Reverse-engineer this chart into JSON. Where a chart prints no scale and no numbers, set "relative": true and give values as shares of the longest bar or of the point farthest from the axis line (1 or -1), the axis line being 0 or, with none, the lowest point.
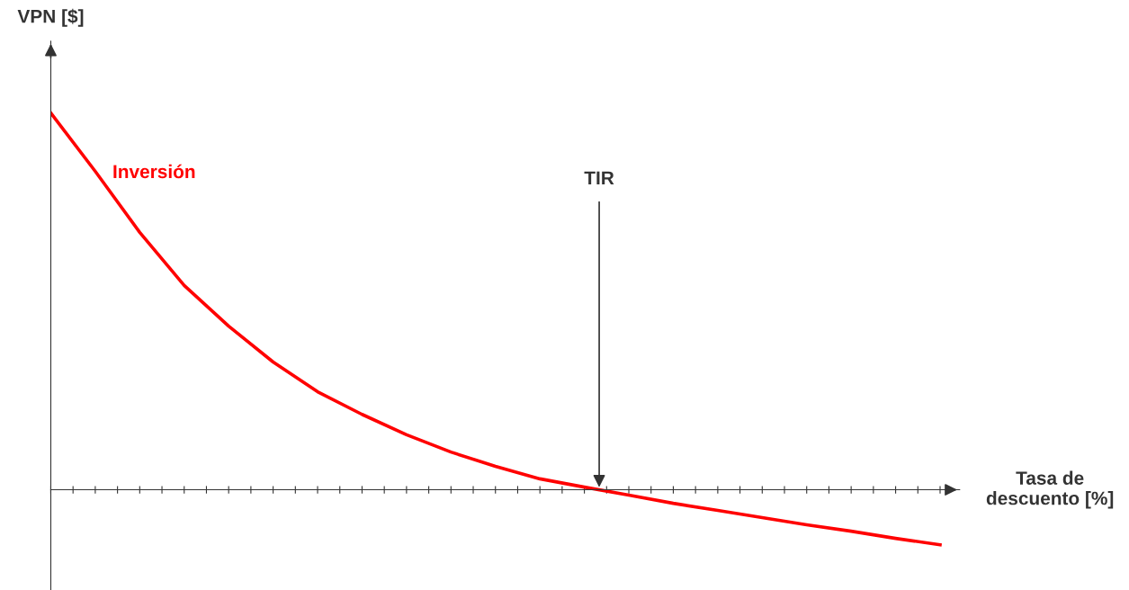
{
  "chart_data": {
    "type": "line",
    "relative": true,
    "xlabel": "Tasa de descuento [%]",
    "ylabel": "VPN [$]",
    "tick_labels": false,
    "grid": false,
    "marker": "none",
    "line_style": "solid",
    "categories": [
      null,
      null,
      null,
      null,
      null,
      null,
      null,
      null,
      null,
      null,
      null,
      null,
      null,
      null,
      null,
      null,
      null,
      null,
      null,
      null,
      null
    ],
    "series": [
      {
        "name": "Inversión",
        "color": "#ff0000",
        "values": [
          1.0,
          0.845,
          0.683,
          0.542,
          0.434,
          0.339,
          0.26,
          0.2,
          0.146,
          0.1,
          0.062,
          0.029,
          0.007,
          -0.014,
          -0.036,
          -0.055,
          -0.074,
          -0.093,
          -0.11,
          -0.129,
          -0.146
        ]
      }
    ],
    "annotations": [
      "TIR"
    ]
  }
}
